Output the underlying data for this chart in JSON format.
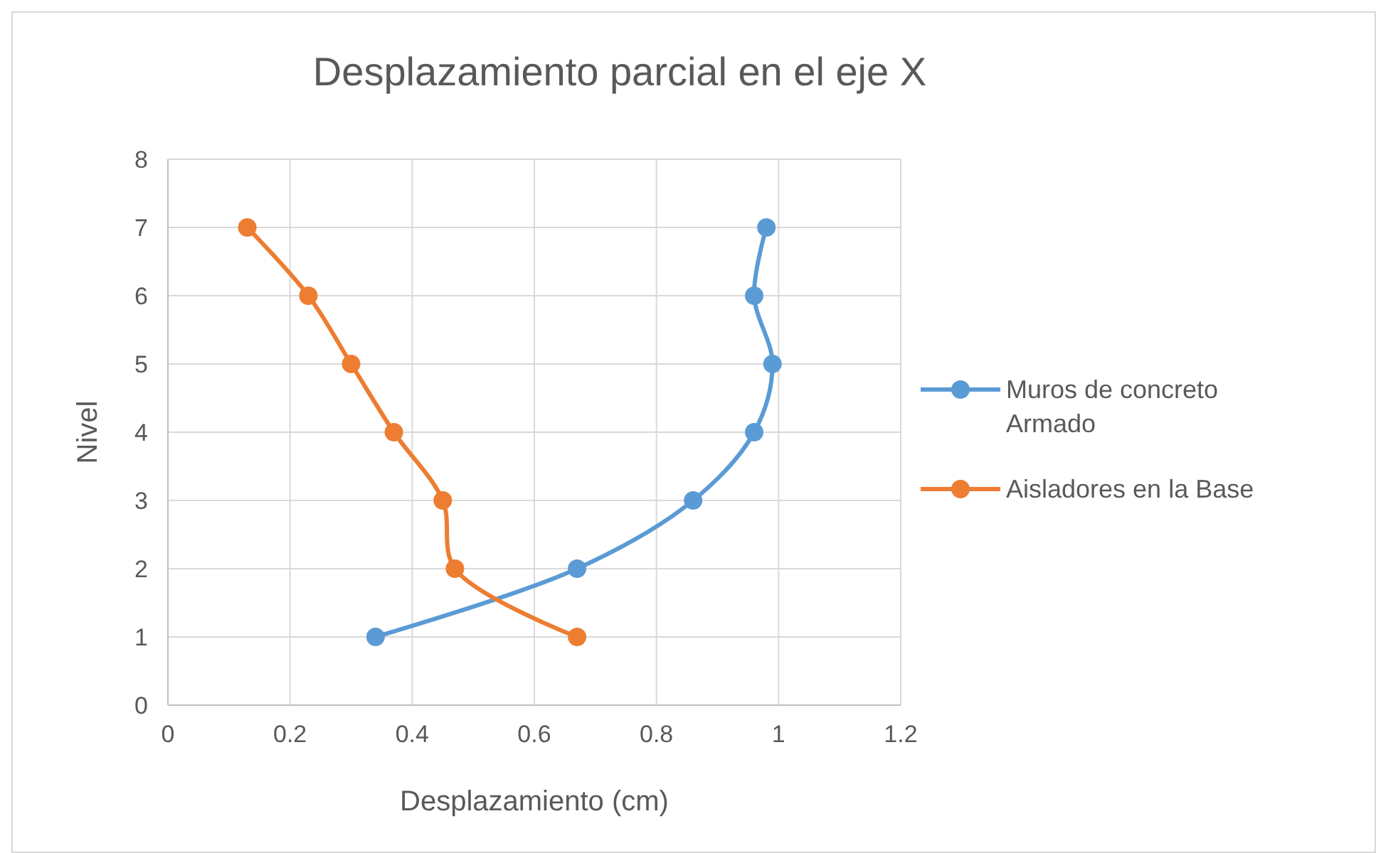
{
  "chart_data": {
    "type": "line",
    "title": "Desplazamiento parcial en el eje X",
    "xlabel": "Desplazamiento (cm)",
    "ylabel": "Nivel",
    "xlim": [
      0,
      1.2
    ],
    "xticks": [
      0,
      0.2,
      0.4,
      0.6,
      0.8,
      1,
      1.2
    ],
    "ylim": [
      0,
      8
    ],
    "yticks": [
      0,
      1,
      2,
      3,
      4,
      5,
      6,
      7,
      8
    ],
    "grid": true,
    "legend": "right",
    "marker": "circle",
    "series": [
      {
        "name": "Muros de concreto Armado",
        "color": "#5b9bd5",
        "x": [
          0.34,
          0.67,
          0.86,
          0.96,
          0.99,
          0.96,
          0.98
        ],
        "values": [
          1,
          2,
          3,
          4,
          5,
          6,
          7
        ]
      },
      {
        "name": "Aisladores en la Base",
        "color": "#ed7d31",
        "x": [
          0.67,
          0.47,
          0.45,
          0.37,
          0.3,
          0.23,
          0.13
        ],
        "values": [
          1,
          2,
          3,
          4,
          5,
          6,
          7
        ]
      }
    ]
  }
}
